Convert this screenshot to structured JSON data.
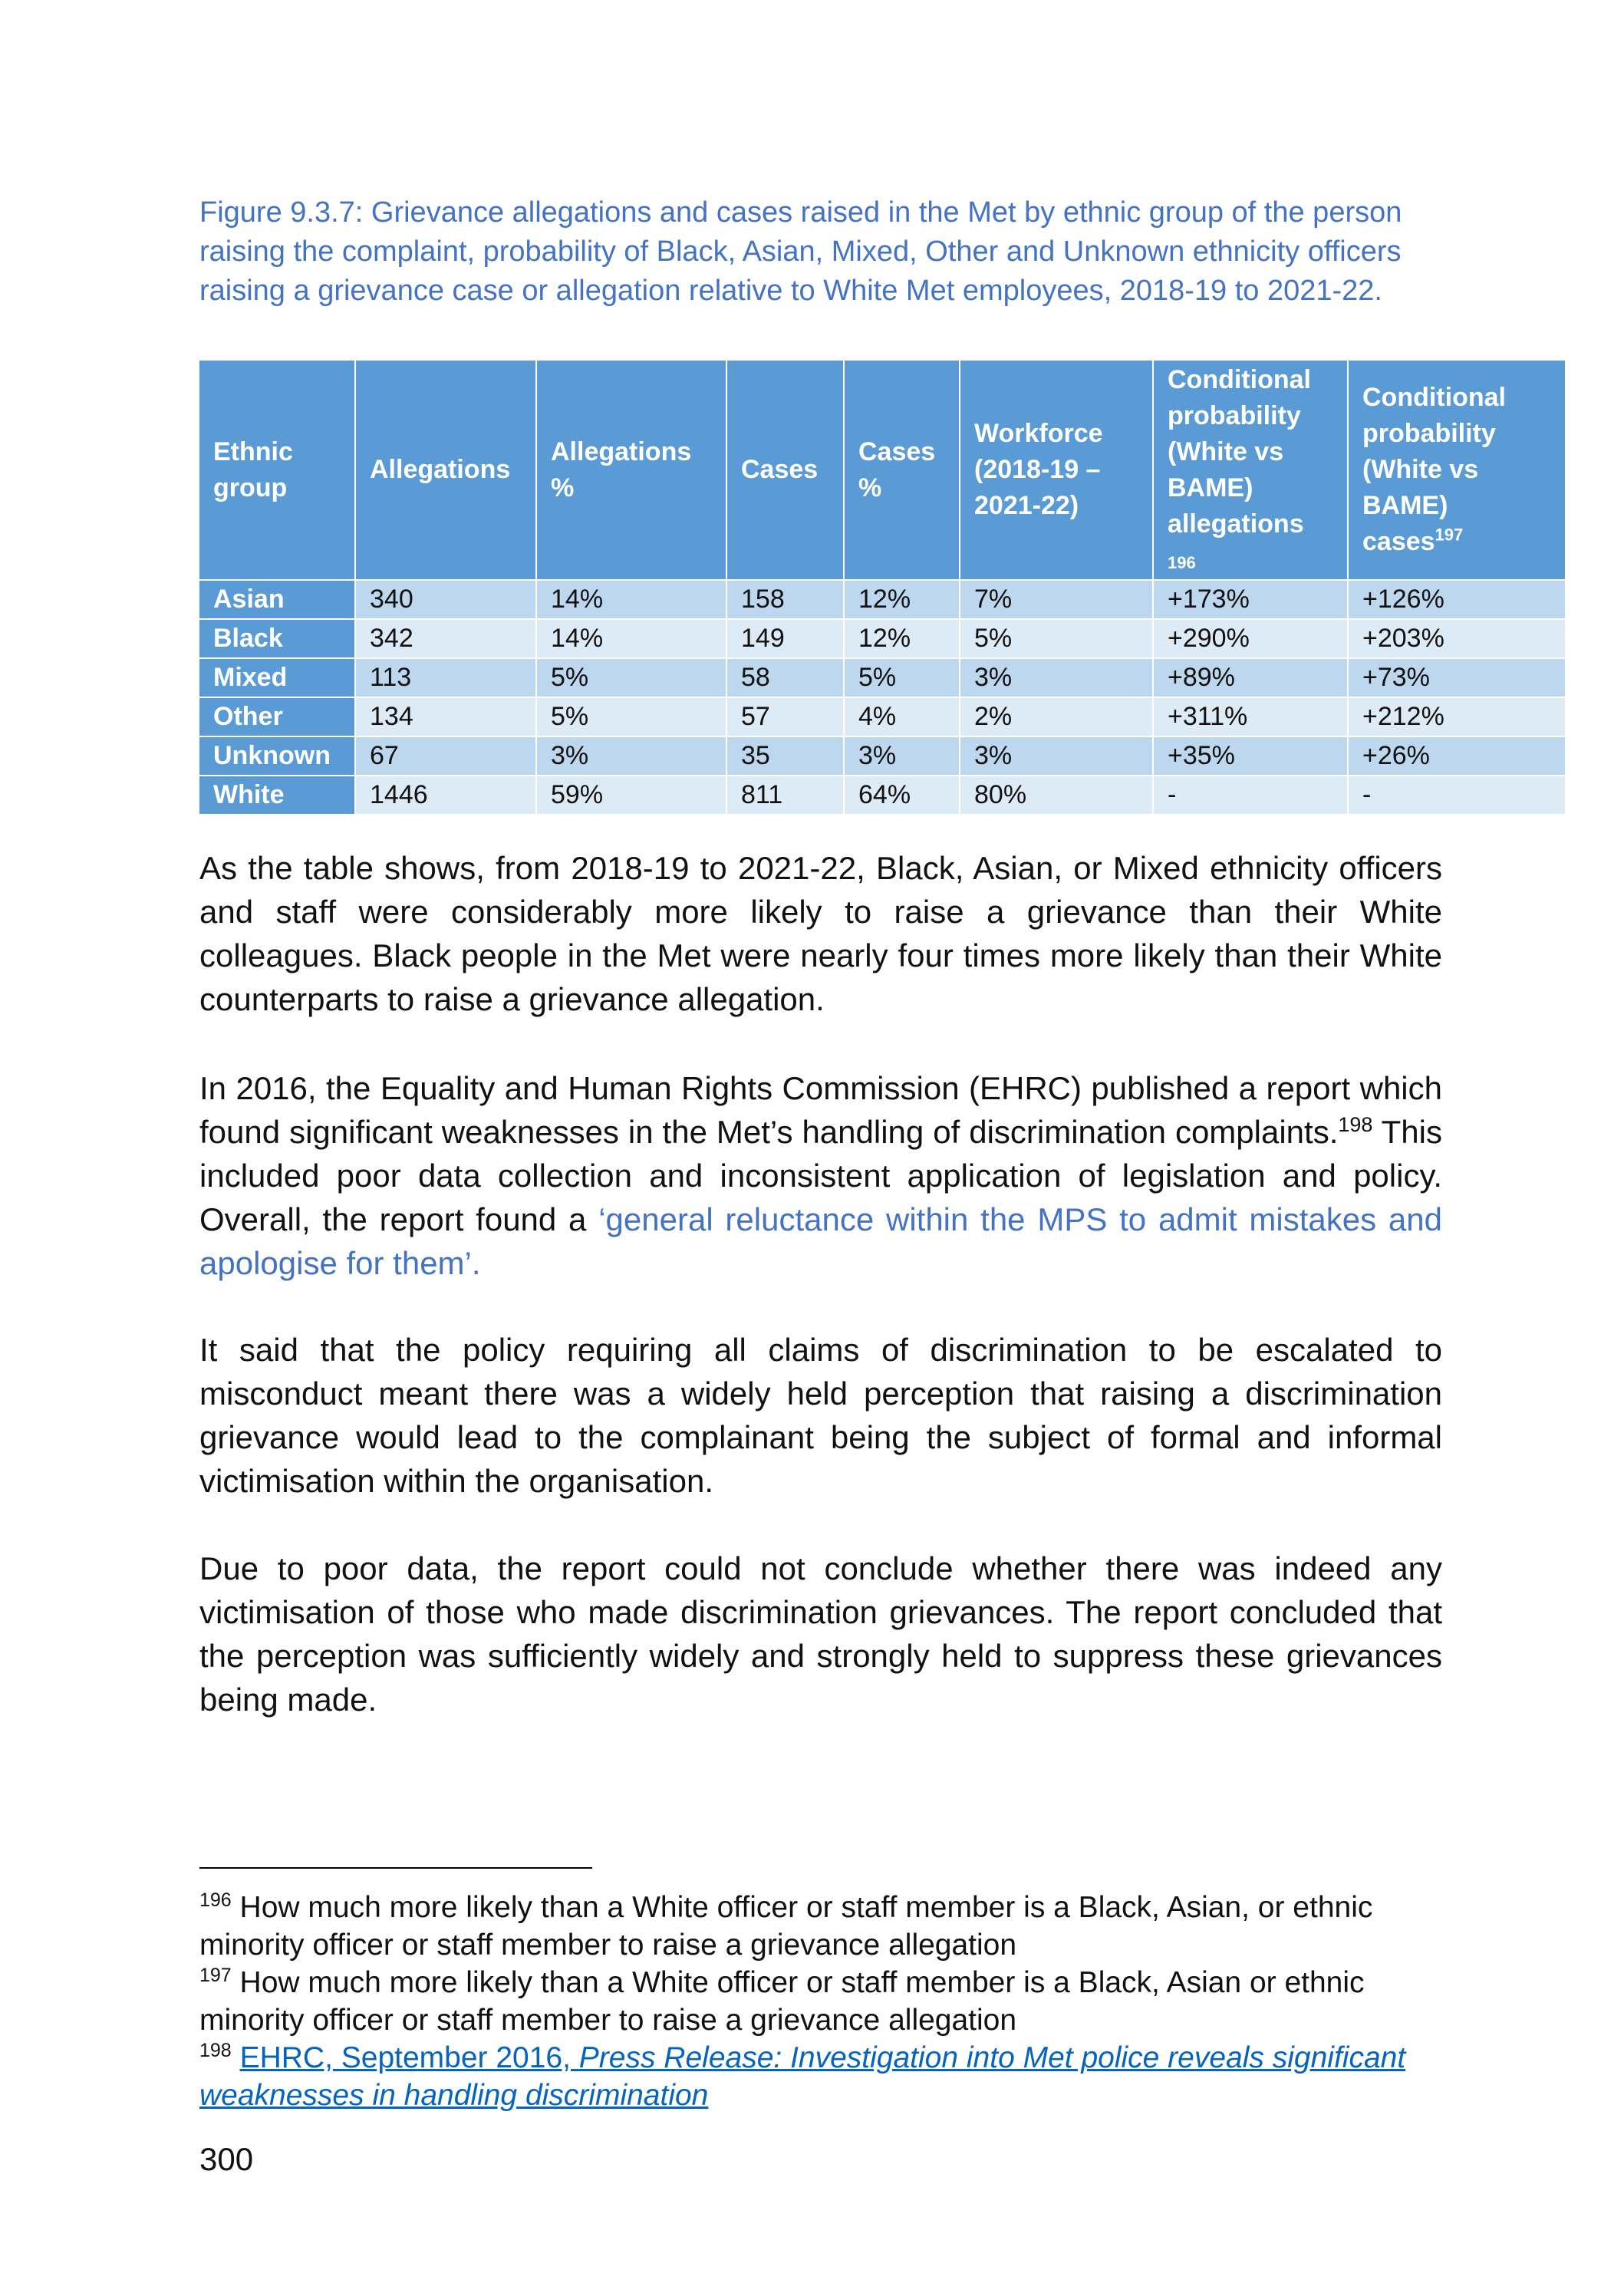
{
  "figure_caption": "Figure 9.3.7: Grievance allegations and cases raised in the Met by ethnic group of the person raising the complaint, probability of Black, Asian, Mixed, Other and Unknown ethnicity officers raising a grievance case or allegation relative to White Met employees, 2018-19 to 2021-22.",
  "table": {
    "headers": {
      "ethnic_group": "Ethnic group",
      "allegations": "Allegations",
      "allegations_pct": "Allegations %",
      "cases": "Cases",
      "cases_pct": "Cases %",
      "workforce": "Workforce (2018-19 – 2021-22)",
      "cond_allegations": "Conditional probability (White vs BAME) allegations",
      "cond_allegations_fn": "196",
      "cond_cases": "Conditional probability (White vs BAME) cases",
      "cond_cases_fn": "197"
    },
    "rows": [
      {
        "group": "Asian",
        "allegations": "340",
        "allegations_pct": "14%",
        "cases": "158",
        "cases_pct": "12%",
        "workforce": "7%",
        "cond_allegations": "+173%",
        "cond_cases": "+126%"
      },
      {
        "group": "Black",
        "allegations": "342",
        "allegations_pct": "14%",
        "cases": "149",
        "cases_pct": "12%",
        "workforce": "5%",
        "cond_allegations": "+290%",
        "cond_cases": "+203%"
      },
      {
        "group": "Mixed",
        "allegations": "113",
        "allegations_pct": "5%",
        "cases": "58",
        "cases_pct": "5%",
        "workforce": "3%",
        "cond_allegations": "+89%",
        "cond_cases": "+73%"
      },
      {
        "group": "Other",
        "allegations": "134",
        "allegations_pct": "5%",
        "cases": "57",
        "cases_pct": "4%",
        "workforce": "2%",
        "cond_allegations": "+311%",
        "cond_cases": "+212%"
      },
      {
        "group": "Unknown",
        "allegations": "67",
        "allegations_pct": "3%",
        "cases": "35",
        "cases_pct": "3%",
        "workforce": "3%",
        "cond_allegations": "+35%",
        "cond_cases": "+26%"
      },
      {
        "group": "White",
        "allegations": "1446",
        "allegations_pct": "59%",
        "cases": "811",
        "cases_pct": "64%",
        "workforce": "80%",
        "cond_allegations": "-",
        "cond_cases": "-"
      }
    ]
  },
  "paragraphs": {
    "p1": "As the table shows, from 2018-19 to 2021-22, Black, Asian, or Mixed ethnicity officers and staff were considerably more likely to raise a grievance than their White colleagues. Black people in the Met were nearly four times more likely than their White counterparts to raise a grievance allegation.",
    "p2_text": "In 2016, the Equality and Human Rights Commission (EHRC) published a report which found significant weaknesses in the Met’s handling of discrimination complaints.",
    "p2_fn": "198",
    "p2_rest": " This included poor data collection and inconsistent application of legislation and policy. Overall, the report found a ",
    "p2_quote": "‘general reluctance within the MPS to admit mistakes and apologise for them’.",
    "p3": "It said that the policy requiring all claims of discrimination to be escalated to misconduct meant there was a widely held perception that raising a discrimination grievance would lead to the complainant being the subject of formal and informal victimisation within the organisation.",
    "p4": "Due to poor data, the report could not conclude whether there was indeed any victimisation of those who made discrimination grievances. The report concluded that the perception was sufficiently widely and strongly held to suppress these grievances being made."
  },
  "footnotes": {
    "fn196_num": "196",
    "fn196_text": " How much more likely than a White officer or staff member is a Black, Asian, or ethnic minority officer or staff member to raise a grievance allegation",
    "fn197_num": "197",
    "fn197_text": " How much more likely than a White officer or staff member is a Black, Asian or ethnic minority officer or staff member to raise a grievance allegation",
    "fn198_num": "198",
    "fn198_link_plain": "EHRC, September 2016, ",
    "fn198_link_italic": "Press Release: Investigation into Met police reveals significant weaknesses in handling discrimination"
  },
  "page_number": "300"
}
